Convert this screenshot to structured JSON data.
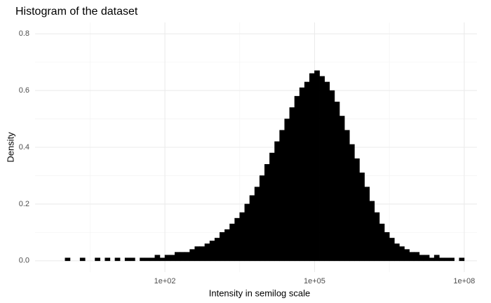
{
  "chart_data": {
    "type": "histogram",
    "title": "Histogram of the dataset",
    "x_label": "Intensity in semilog scale",
    "y_label": "Density",
    "log_x": true,
    "grid": true,
    "color": "#000000",
    "bins": [
      1.0,
      1.259,
      1.585,
      1.995,
      2.512,
      3.162,
      3.981,
      5.012,
      6.31,
      7.943,
      10.0,
      12.59,
      15.85,
      19.95,
      25.12,
      31.62,
      39.81,
      50.12,
      63.1,
      79.43,
      100.0,
      125.9,
      158.5,
      199.5,
      251.2,
      316.2,
      398.1,
      501.2,
      631.0,
      794.3,
      1000.0,
      1259.0,
      1585.0,
      1995.0,
      2512.0,
      3162.0,
      3981.0,
      5012.0,
      6310.0,
      7943.0,
      10000.0,
      12590.0,
      15850.0,
      19950.0,
      25120.0,
      31620.0,
      39810.0,
      50120.0,
      63100.0,
      79430.0,
      100000.0,
      125900.0,
      158500.0,
      199500.0,
      251200.0,
      316200.0,
      398100.0,
      501200.0,
      631000.0,
      794300.0,
      1000000.0,
      1259000.0,
      1585000.0,
      1995000.0,
      2512000.0,
      3162000.0,
      3981000.0,
      5012000.0,
      6310000.0,
      7943000.0,
      10000000.0,
      12590000.0,
      15850000.0,
      19950000.0,
      25120000.0,
      31620000.0,
      39810000.0,
      50120000.0,
      63100000.0,
      79430000.0,
      100000000.0
    ],
    "values": [
      0.01,
      0,
      0,
      0.01,
      0,
      0,
      0.01,
      0,
      0.01,
      0,
      0.01,
      0,
      0.01,
      0.01,
      0,
      0.01,
      0.01,
      0.01,
      0.02,
      0.01,
      0.02,
      0.02,
      0.03,
      0.03,
      0.03,
      0.04,
      0.05,
      0.05,
      0.06,
      0.07,
      0.08,
      0.1,
      0.11,
      0.13,
      0.15,
      0.17,
      0.2,
      0.23,
      0.26,
      0.3,
      0.34,
      0.38,
      0.42,
      0.46,
      0.5,
      0.54,
      0.58,
      0.61,
      0.63,
      0.66,
      0.67,
      0.65,
      0.63,
      0.6,
      0.56,
      0.51,
      0.46,
      0.41,
      0.36,
      0.31,
      0.26,
      0.21,
      0.17,
      0.13,
      0.1,
      0.08,
      0.06,
      0.05,
      0.04,
      0.03,
      0.03,
      0.02,
      0.02,
      0.01,
      0.02,
      0.01,
      0.01,
      0.01,
      0,
      0.01
    ],
    "xlim": [
      0.25,
      180000000
    ],
    "ylim": [
      -0.04,
      0.84
    ],
    "xticks": [
      {
        "value": 100,
        "label": "1e+02"
      },
      {
        "value": 100000,
        "label": "1e+05"
      },
      {
        "value": 100000000,
        "label": "1e+08"
      }
    ],
    "yticks": [
      {
        "value": 0,
        "label": "0.0"
      },
      {
        "value": 0.2,
        "label": "0.2"
      },
      {
        "value": 0.4,
        "label": "0.4"
      },
      {
        "value": 0.6,
        "label": "0.6"
      },
      {
        "value": 0.8,
        "label": "0.8"
      }
    ]
  }
}
